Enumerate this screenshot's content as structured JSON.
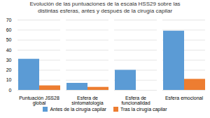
{
  "chart_data": {
    "type": "bar",
    "title": "Evolución de las puntuaciones de la escala HSS29 sobre las\ndistintas esferas, antes y después de la cirugía capilar",
    "categories": [
      "Puntuación JSS28 global",
      "Esfera de\nsintomatología",
      "Esfera de funcionalidad",
      "Esfera emocional"
    ],
    "series": [
      {
        "name": "Antes de la cirugía capilar",
        "color": "#5B9BD5",
        "values": [
          31,
          7,
          20,
          59
        ]
      },
      {
        "name": "Tras la cirugía capilar",
        "color": "#ED7D31",
        "values": [
          4.5,
          3,
          0,
          11
        ]
      }
    ],
    "ylim": [
      0,
      70
    ],
    "yticks": [
      0,
      10,
      20,
      30,
      40,
      50,
      60,
      70
    ],
    "grid": true,
    "legend": "bottom"
  }
}
